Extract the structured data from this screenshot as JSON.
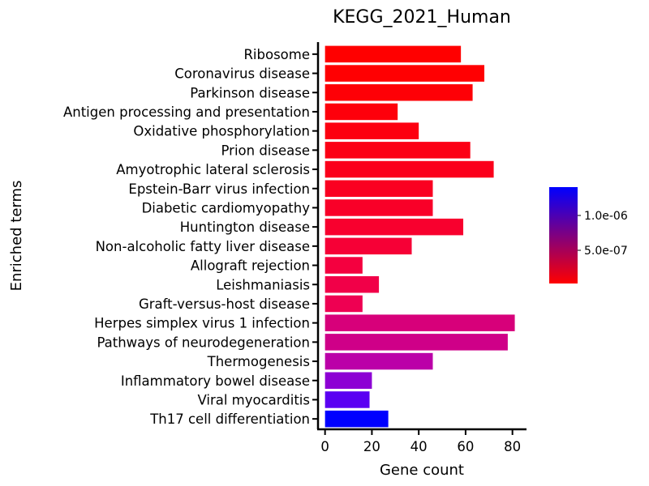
{
  "chart_data": {
    "type": "bar",
    "orientation": "horizontal",
    "title": "KEGG_2021_Human",
    "xlabel": "Gene count",
    "ylabel": "Enriched terms",
    "xlim": [
      -3,
      86
    ],
    "xticks": [
      0,
      20,
      40,
      60,
      80
    ],
    "categories": [
      "Ribosome",
      "Coronavirus disease",
      "Parkinson disease",
      "Antigen processing and presentation",
      "Oxidative phosphorylation",
      "Prion disease",
      "Amyotrophic lateral sclerosis",
      "Epstein-Barr virus infection",
      "Diabetic cardiomyopathy",
      "Huntington disease",
      "Non-alcoholic fatty liver disease",
      "Allograft rejection",
      "Leishmaniasis",
      "Graft-versus-host disease",
      "Herpes simplex virus 1 infection",
      "Pathways of neurodegeneration",
      "Thermogenesis",
      "Inflammatory bowel disease",
      "Viral myocarditis",
      "Th17 cell differentiation"
    ],
    "values": [
      58,
      68,
      63,
      31,
      40,
      62,
      72,
      46,
      46,
      59,
      37,
      16,
      23,
      16,
      81,
      78,
      46,
      20,
      19,
      27
    ],
    "bar_colors": [
      "#ff0000",
      "#ff0002",
      "#fe0006",
      "#fe000b",
      "#fd0010",
      "#fc0015",
      "#fb001b",
      "#fa0021",
      "#f90028",
      "#f8002e",
      "#f60036",
      "#f4003f",
      "#f10048",
      "#ee0052",
      "#d7007a",
      "#cf0088",
      "#bb00a8",
      "#8d00d4",
      "#5a00f2",
      "#0000ff"
    ],
    "colorbar": {
      "colors": [
        "#0000ff",
        "#ff0000"
      ],
      "tick_labels": [
        "1.0e-06",
        "5.0e-07"
      ]
    },
    "grid": false,
    "legend": "right"
  }
}
